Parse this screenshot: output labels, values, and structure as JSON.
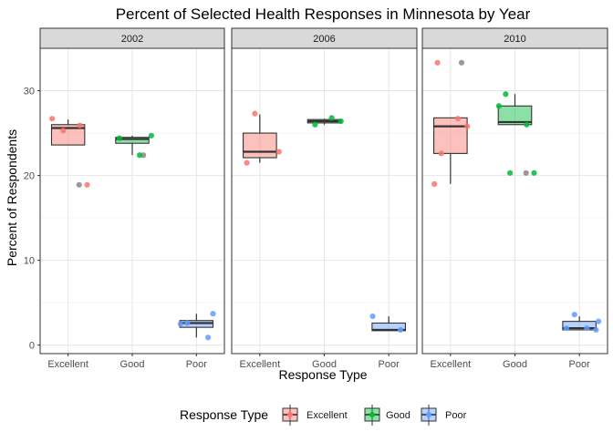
{
  "chart_data": {
    "type": "boxplot",
    "title": "Percent of Selected Health Responses in Minnesota by Year",
    "xlabel": "Response Type",
    "ylabel": "Percent of Respondents",
    "ylim": [
      -1,
      35
    ],
    "yticks": [
      0,
      10,
      20,
      30
    ],
    "categories": [
      "Excellent",
      "Good",
      "Poor"
    ],
    "colors": {
      "Excellent": {
        "fill": "#f8766d",
        "point": "#f8766d"
      },
      "Good": {
        "fill": "#00ba38",
        "point": "#00ba38"
      },
      "Poor": {
        "fill": "#619cff",
        "point": "#619cff"
      }
    },
    "legend": {
      "title": "Response Type",
      "position": "bottom",
      "entries": [
        "Excellent",
        "Good",
        "Poor"
      ]
    },
    "grid": true,
    "facets": [
      {
        "label": "2002",
        "boxes": [
          {
            "category": "Excellent",
            "whisker_low": 23.6,
            "q1": 23.6,
            "median": 25.6,
            "q3": 26.0,
            "whisker_high": 26.6,
            "outliers": [
              18.9
            ],
            "points": [
              26.7,
              25.9,
              25.3,
              18.9
            ]
          },
          {
            "category": "Good",
            "whisker_low": 22.4,
            "q1": 23.8,
            "median": 24.3,
            "q3": 24.5,
            "whisker_high": 24.7,
            "outliers": [
              22.4
            ],
            "points": [
              24.7,
              24.4,
              22.4
            ]
          },
          {
            "category": "Poor",
            "whisker_low": 0.9,
            "q1": 2.1,
            "median": 2.6,
            "q3": 2.9,
            "whisker_high": 3.7,
            "outliers": [],
            "points": [
              3.7,
              2.6,
              2.5,
              0.9
            ]
          }
        ]
      },
      {
        "label": "2006",
        "boxes": [
          {
            "category": "Excellent",
            "whisker_low": 21.5,
            "q1": 22.1,
            "median": 22.8,
            "q3": 25.0,
            "whisker_high": 27.2,
            "outliers": [],
            "points": [
              27.3,
              22.8,
              21.5
            ]
          },
          {
            "category": "Good",
            "whisker_low": 26.0,
            "q1": 26.2,
            "median": 26.4,
            "q3": 26.6,
            "whisker_high": 26.7,
            "outliers": [],
            "points": [
              26.8,
              26.4,
              26.0
            ]
          },
          {
            "category": "Poor",
            "whisker_low": 1.7,
            "q1": 1.7,
            "median": 1.8,
            "q3": 2.6,
            "whisker_high": 3.4,
            "outliers": [],
            "points": [
              3.4,
              1.8
            ]
          }
        ]
      },
      {
        "label": "2010",
        "boxes": [
          {
            "category": "Excellent",
            "whisker_low": 19.0,
            "q1": 22.6,
            "median": 25.8,
            "q3": 26.8,
            "whisker_high": 26.8,
            "outliers": [
              33.3
            ],
            "points": [
              33.3,
              26.7,
              25.8,
              22.6,
              19.0
            ]
          },
          {
            "category": "Good",
            "whisker_low": 26.0,
            "q1": 26.0,
            "median": 26.3,
            "q3": 28.2,
            "whisker_high": 29.6,
            "outliers": [
              20.3
            ],
            "points": [
              29.6,
              28.2,
              26.0,
              20.3,
              20.3
            ]
          },
          {
            "category": "Poor",
            "whisker_low": 1.8,
            "q1": 1.8,
            "median": 2.0,
            "q3": 2.8,
            "whisker_high": 3.4,
            "outliers": [],
            "points": [
              3.6,
              2.8,
              2.0,
              2.0,
              1.8
            ]
          }
        ]
      }
    ]
  }
}
